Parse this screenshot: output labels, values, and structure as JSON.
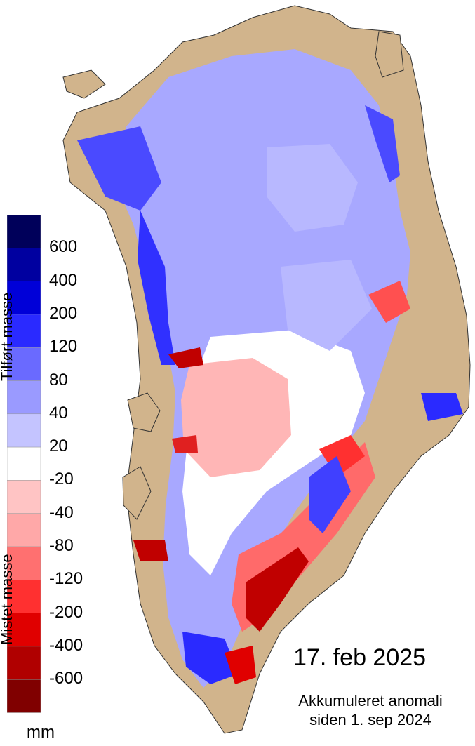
{
  "date_label": "17. feb 2025",
  "subtitle_line1": "Akkumuleret anomali",
  "subtitle_line2": "siden 1. sep 2024",
  "legend": {
    "gain_label": "Tilført masse",
    "loss_label": "Mistet masse",
    "unit": "mm",
    "ticks": [
      "600",
      "400",
      "200",
      "120",
      "80",
      "40",
      "20",
      "-20",
      "-40",
      "-80",
      "-120",
      "-200",
      "-400",
      "-600"
    ],
    "colors": [
      "#00005a",
      "#0000a0",
      "#0000d8",
      "#2a2aff",
      "#6a6aff",
      "#9a9aff",
      "#c4c4ff",
      "#ffffff",
      "#ffc4c4",
      "#ffa8a8",
      "#ff7070",
      "#ff3030",
      "#e00000",
      "#b00000",
      "#800000"
    ]
  },
  "map_colors": {
    "land": "#d1b48c",
    "coast": "#333333",
    "background": "#ffffff"
  }
}
